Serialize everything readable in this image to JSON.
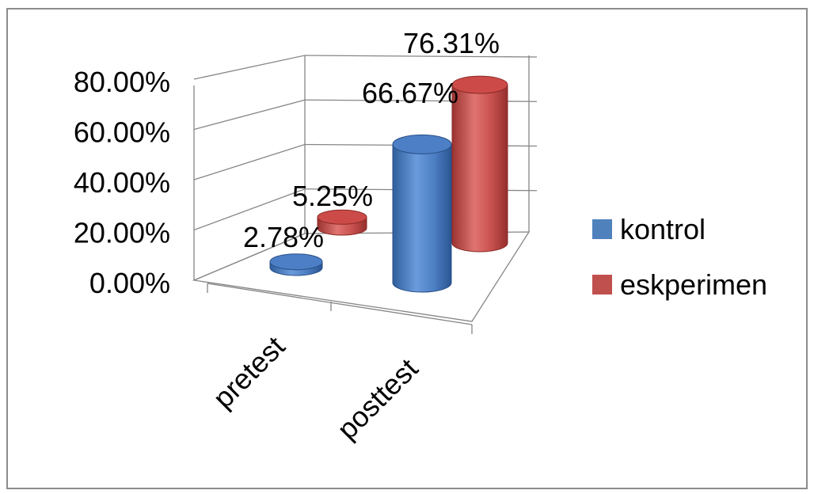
{
  "chart_data": {
    "type": "bar",
    "style": "3d-cylinder",
    "categories": [
      "pretest",
      "posttest"
    ],
    "series": [
      {
        "name": "kontrol",
        "values": [
          2.78,
          66.67
        ],
        "labels": [
          "2.78%",
          "66.67%"
        ],
        "color": "#4F81BD"
      },
      {
        "name": "eskperimen",
        "values": [
          5.25,
          76.31
        ],
        "labels": [
          "5.25%",
          "76.31%"
        ],
        "color": "#C0504D"
      }
    ],
    "ylim": [
      0,
      80
    ],
    "yticks": [
      0,
      20,
      40,
      60,
      80
    ],
    "ytick_labels": [
      "0.00%",
      "20.00%",
      "40.00%",
      "60.00%",
      "80.00%"
    ],
    "grid": true,
    "legend": "right",
    "title": "",
    "xlabel": "",
    "ylabel": ""
  }
}
